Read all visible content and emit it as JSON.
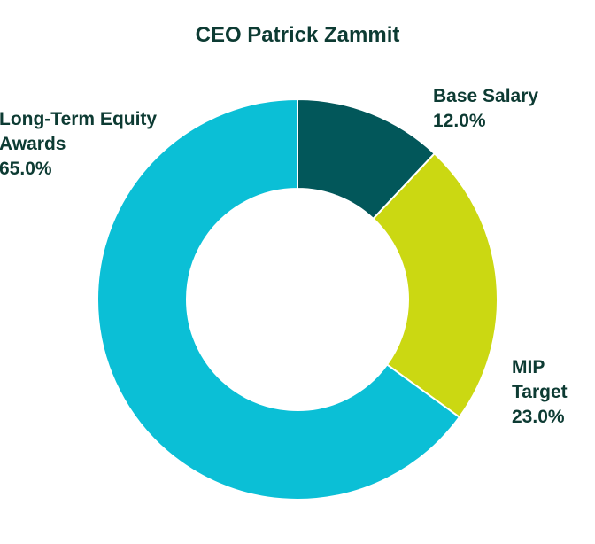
{
  "chart_data": {
    "type": "pie",
    "title": "CEO Patrick Zammit",
    "series": [
      {
        "values": [
          12.0,
          23.0,
          65.0
        ]
      }
    ],
    "slices": [
      {
        "label_lines": [
          "Base Salary"
        ],
        "value": 12.0,
        "value_label": "12.0%",
        "color": "#02575a"
      },
      {
        "label_lines": [
          "MIP",
          "Target"
        ],
        "value": 23.0,
        "value_label": "23.0%",
        "color": "#cbd812"
      },
      {
        "label_lines": [
          "Long-Term Equity",
          "Awards"
        ],
        "value": 65.0,
        "value_label": "65.0%",
        "color": "#0bbfd6"
      }
    ],
    "hole": "donut",
    "legend": "none"
  }
}
